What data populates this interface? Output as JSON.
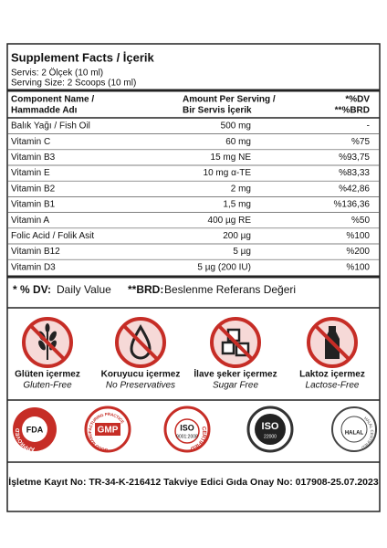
{
  "header": {
    "title": "Supplement Facts / İçerik",
    "serving_tr": "Servis: 2 Ölçek (10 ml)",
    "serving_en": "Serving Size: 2 Scoops (10 ml)"
  },
  "table": {
    "columns": [
      [
        "Component Name /",
        "Hammadde Adı"
      ],
      [
        "Amount Per Serving /",
        "Bir Servis İçerik"
      ],
      [
        "*%DV",
        "**%BRD"
      ]
    ],
    "rows": [
      [
        "Balık Yağı / Fish Oil",
        "500 mg",
        "-"
      ],
      [
        "Vitamin C",
        "60 mg",
        "%75"
      ],
      [
        "Vitamin B3",
        "15 mg NE",
        "%93,75"
      ],
      [
        "Vitamin E",
        "10 mg α-TE",
        "%83,33"
      ],
      [
        "Vitamin B2",
        "2 mg",
        "%42,86"
      ],
      [
        "Vitamin B1",
        "1,5 mg",
        "%136,36"
      ],
      [
        "Vitamin A",
        "400 µg RE",
        "%50"
      ],
      [
        "Folic Acid / Folik Asit",
        "200 µg",
        "%100"
      ],
      [
        "Vitamin B12",
        "5 µg",
        "%200"
      ],
      [
        "Vitamin D3",
        "5 µg (200 IU)",
        "%100"
      ]
    ]
  },
  "footnotes": [
    {
      "key": "* % DV:",
      "text": "Daily Value"
    },
    {
      "key": "**BRD:",
      "text": "Beslenme Referans Değeri"
    }
  ],
  "features": [
    {
      "label": "Glüten içermez",
      "sublabel": "Gluten-Free"
    },
    {
      "label": "Koruyucu içermez",
      "sublabel": "No Preservatives"
    },
    {
      "label": "İlave şeker içermez",
      "sublabel": "Sugar Free"
    },
    {
      "label": "Laktoz içermez",
      "sublabel": "Lactose-Free"
    }
  ],
  "certifications": [
    {
      "center": "FDA",
      "ring": "APPROVED"
    },
    {
      "center": "GMP",
      "ring": "GOOD MANUFACTURING PRACTICE"
    },
    {
      "center": "ISO",
      "sub": "9001:2008",
      "ring": "CERTIFIED"
    },
    {
      "center": "ISO",
      "sub": "22000"
    },
    {
      "center": "HALAL",
      "ring": "HALAL CERTIFIED"
    }
  ],
  "registration": "İşletme Kayıt No: TR-34-K-216412 Takviye Edici Gıda Onay No: 017908-25.07.2023"
}
